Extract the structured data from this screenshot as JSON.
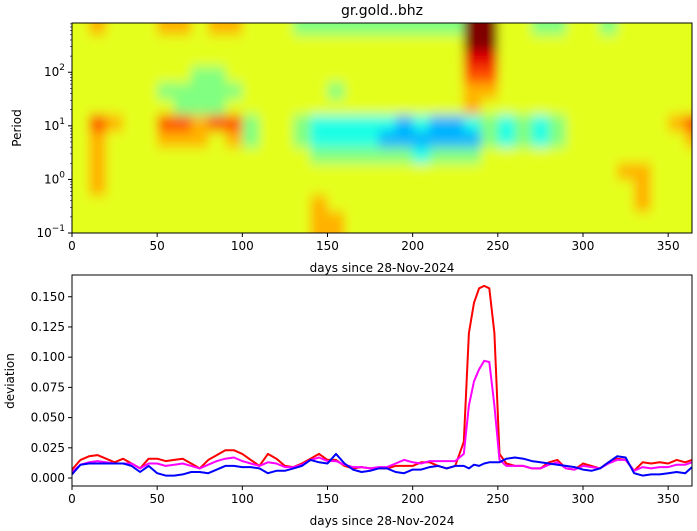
{
  "chart_data": [
    {
      "type": "heatmap",
      "title": "gr.gold..bhz",
      "xlabel": "days since 28-Nov-2024",
      "ylabel": "Period",
      "xlim": [
        0,
        364
      ],
      "ylim": [
        0.1,
        830
      ],
      "yscale": "log",
      "xticks": [
        "0",
        "50",
        "100",
        "150",
        "200",
        "250",
        "300",
        "350"
      ],
      "yticks": [
        {
          "base": "10",
          "exp": "−1"
        },
        {
          "base": "10",
          "exp": "0"
        },
        {
          "base": "10",
          "exp": "1"
        },
        {
          "base": "10",
          "exp": "2"
        }
      ],
      "colormap": "jet",
      "column_days_start": [
        0,
        10,
        20,
        30,
        40,
        50,
        60,
        70,
        80,
        90,
        100,
        110,
        120,
        130,
        140,
        150,
        160,
        170,
        180,
        190,
        200,
        210,
        220,
        230,
        240,
        250,
        260,
        270,
        280,
        290,
        300,
        310,
        320,
        330,
        340,
        350,
        360
      ],
      "row_log10_period_centers": [
        2.85,
        2.55,
        2.25,
        1.95,
        1.65,
        1.35,
        1.05,
        0.75,
        0.45,
        0.15,
        -0.15,
        -0.45,
        -0.75
      ],
      "relative_level_0_to_9": [
        "5655566566555444444444499554455455555",
        "5555555555555555555555599555555555555",
        "5555555555555555555555588555555555555",
        "5555555445555555555555577555555555555",
        "5555544444555554555555566555555555555",
        "5555554445555555555555565555555555555",
        "5765577677455433333232234343455555567",
        "5655566656455433332222224343455555556",
        "5655555555555544444434445555555555555",
        "5655555555555555555555555555555566555",
        "5655555555555555555555555555555556555",
        "5555555555555565555555555555555556555",
        "5555555555555566555555555555555555555"
      ]
    },
    {
      "type": "line",
      "xlabel": "days since 28-Nov-2024",
      "ylabel": "deviation",
      "xlim": [
        0,
        364
      ],
      "ylim": [
        -0.0066,
        0.168
      ],
      "xticks": [
        "0",
        "50",
        "100",
        "150",
        "200",
        "250",
        "300",
        "350"
      ],
      "yticks": [
        "0.000",
        "0.025",
        "0.050",
        "0.075",
        "0.100",
        "0.125",
        "0.150"
      ],
      "x": [
        0,
        5,
        10,
        15,
        20,
        25,
        30,
        35,
        40,
        45,
        50,
        55,
        60,
        65,
        70,
        75,
        80,
        85,
        90,
        95,
        100,
        105,
        110,
        115,
        120,
        125,
        130,
        135,
        140,
        145,
        150,
        155,
        160,
        165,
        170,
        175,
        180,
        185,
        190,
        195,
        200,
        205,
        210,
        215,
        220,
        225,
        230,
        233,
        236,
        239,
        242,
        245,
        248,
        251,
        255,
        260,
        265,
        270,
        275,
        280,
        285,
        290,
        295,
        300,
        305,
        310,
        315,
        320,
        325,
        330,
        335,
        340,
        345,
        350,
        355,
        360,
        364
      ],
      "series": [
        {
          "color": "#ff0000",
          "values": [
            0.007,
            0.015,
            0.018,
            0.019,
            0.016,
            0.013,
            0.016,
            0.012,
            0.008,
            0.016,
            0.016,
            0.014,
            0.015,
            0.016,
            0.012,
            0.008,
            0.015,
            0.019,
            0.023,
            0.023,
            0.02,
            0.015,
            0.01,
            0.02,
            0.016,
            0.01,
            0.009,
            0.012,
            0.016,
            0.02,
            0.015,
            0.015,
            0.01,
            0.008,
            0.009,
            0.008,
            0.008,
            0.008,
            0.01,
            0.01,
            0.01,
            0.013,
            0.013,
            0.01,
            0.008,
            0.01,
            0.03,
            0.12,
            0.145,
            0.157,
            0.159,
            0.157,
            0.12,
            0.02,
            0.012,
            0.01,
            0.01,
            0.008,
            0.008,
            0.013,
            0.015,
            0.008,
            0.007,
            0.012,
            0.01,
            0.008,
            0.013,
            0.016,
            0.015,
            0.006,
            0.013,
            0.012,
            0.013,
            0.012,
            0.015,
            0.013,
            0.015
          ]
        },
        {
          "color": "#ff00ff",
          "values": [
            0.005,
            0.011,
            0.013,
            0.014,
            0.013,
            0.012,
            0.012,
            0.012,
            0.008,
            0.012,
            0.012,
            0.01,
            0.011,
            0.012,
            0.01,
            0.008,
            0.011,
            0.014,
            0.016,
            0.017,
            0.014,
            0.012,
            0.01,
            0.013,
            0.012,
            0.009,
            0.009,
            0.011,
            0.015,
            0.017,
            0.014,
            0.014,
            0.011,
            0.009,
            0.009,
            0.008,
            0.009,
            0.009,
            0.012,
            0.015,
            0.013,
            0.012,
            0.014,
            0.014,
            0.014,
            0.014,
            0.02,
            0.06,
            0.08,
            0.09,
            0.097,
            0.096,
            0.06,
            0.015,
            0.01,
            0.01,
            0.01,
            0.008,
            0.008,
            0.011,
            0.013,
            0.008,
            0.007,
            0.01,
            0.009,
            0.008,
            0.012,
            0.015,
            0.015,
            0.006,
            0.009,
            0.008,
            0.009,
            0.009,
            0.011,
            0.011,
            0.013
          ]
        },
        {
          "color": "#0000ff",
          "values": [
            0.003,
            0.011,
            0.012,
            0.012,
            0.012,
            0.012,
            0.012,
            0.01,
            0.005,
            0.01,
            0.004,
            0.002,
            0.002,
            0.003,
            0.005,
            0.005,
            0.004,
            0.007,
            0.01,
            0.01,
            0.009,
            0.009,
            0.008,
            0.004,
            0.006,
            0.006,
            0.008,
            0.01,
            0.015,
            0.013,
            0.012,
            0.02,
            0.012,
            0.007,
            0.005,
            0.006,
            0.008,
            0.008,
            0.005,
            0.004,
            0.007,
            0.007,
            0.009,
            0.01,
            0.008,
            0.01,
            0.01,
            0.008,
            0.011,
            0.01,
            0.012,
            0.013,
            0.013,
            0.013,
            0.016,
            0.017,
            0.016,
            0.014,
            0.013,
            0.012,
            0.011,
            0.01,
            0.009,
            0.007,
            0.006,
            0.008,
            0.013,
            0.018,
            0.017,
            0.004,
            0.002,
            0.003,
            0.003,
            0.004,
            0.005,
            0.004,
            0.009
          ]
        }
      ]
    }
  ]
}
